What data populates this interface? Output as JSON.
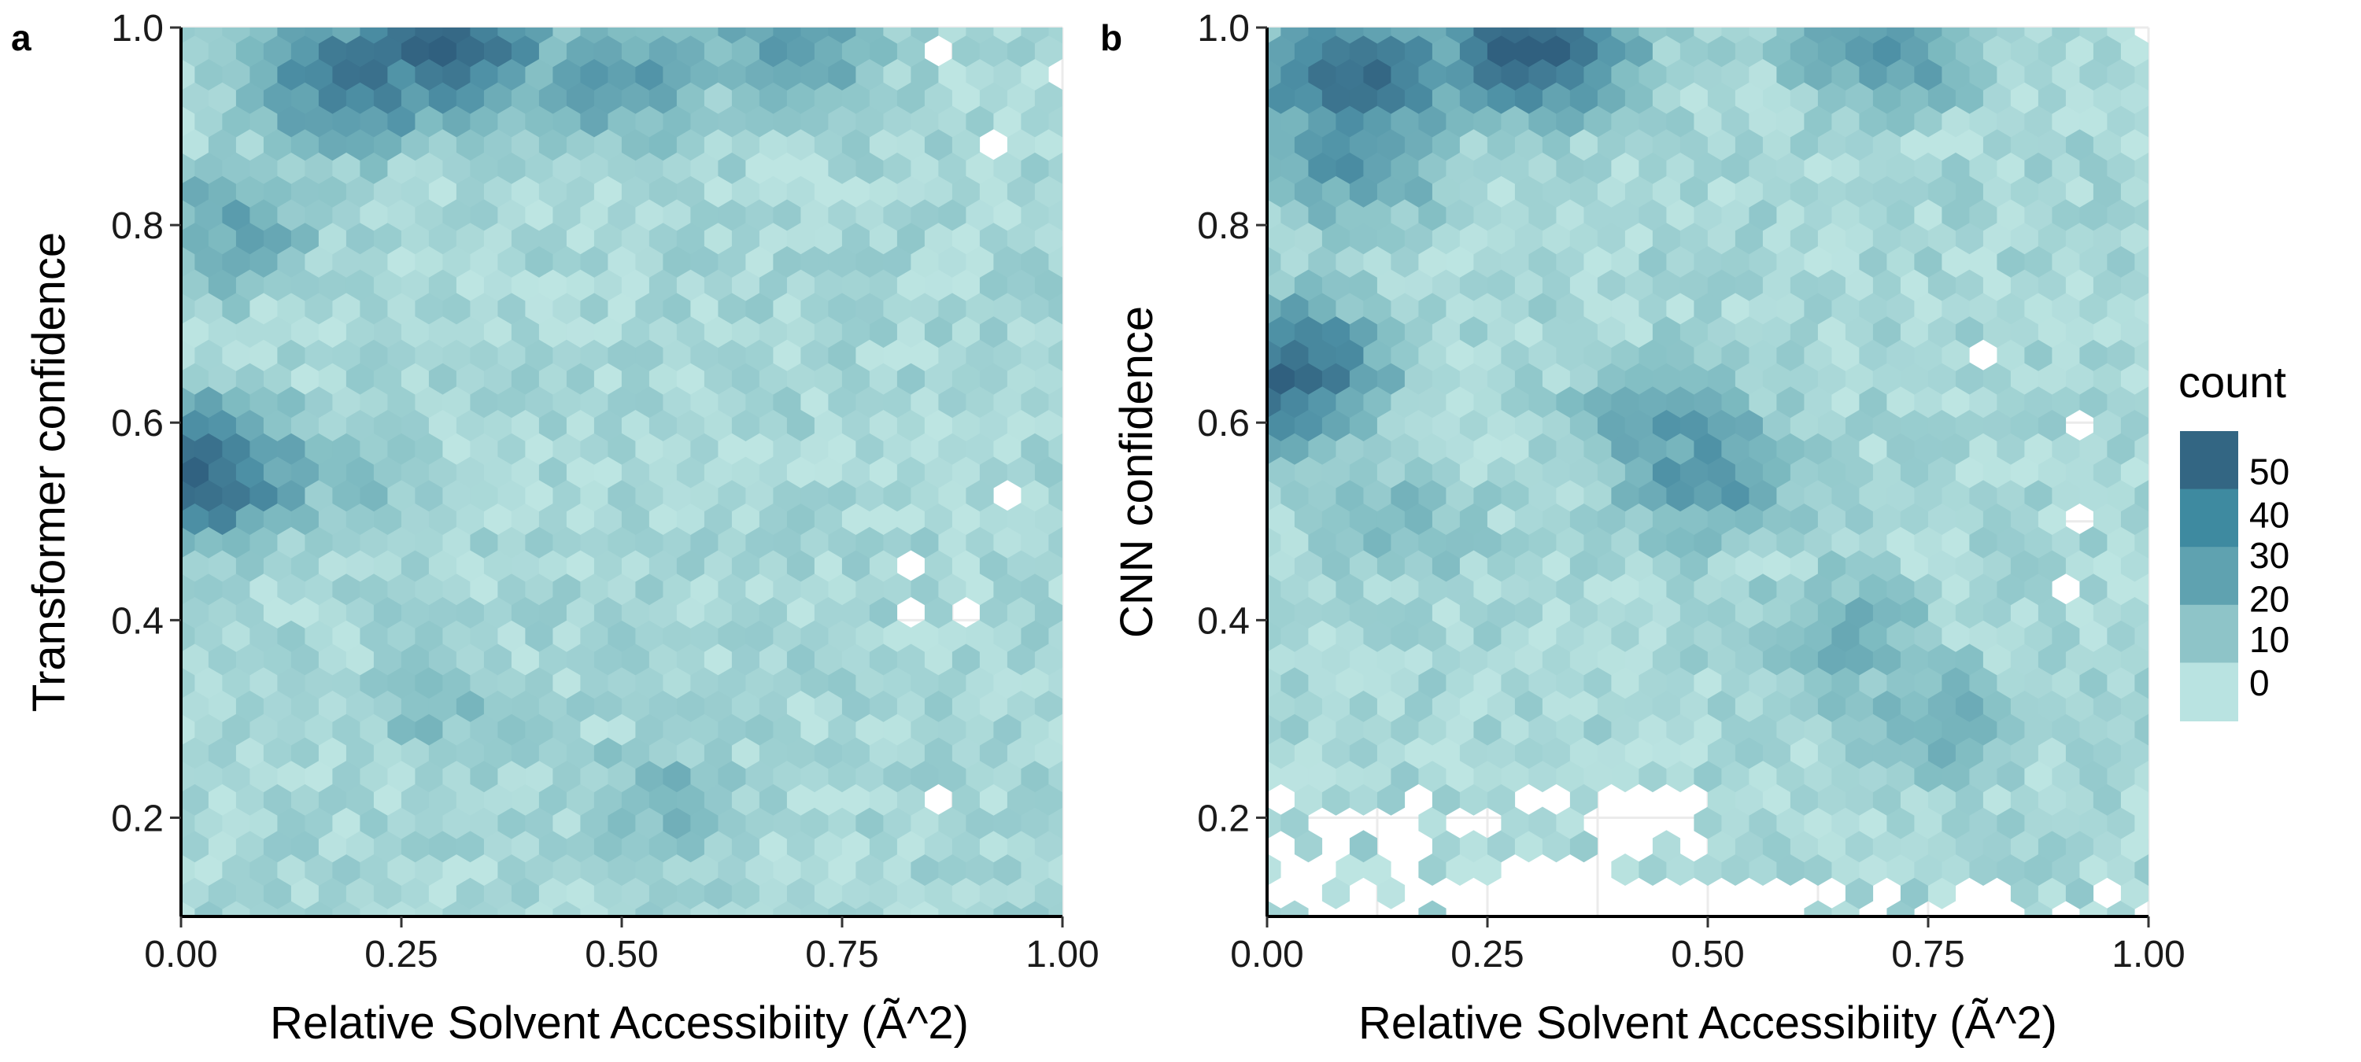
{
  "chart_data": [
    {
      "type": "hexbin",
      "panel": "a",
      "title": "",
      "xlabel": "Relative Solvent Accessibiity (Ã^2)",
      "ylabel": "Transformer confidence",
      "xlim": [
        0,
        1
      ],
      "ylim": [
        0.1,
        1.0
      ],
      "xticks": [
        0.0,
        0.25,
        0.5,
        0.75,
        1.0
      ],
      "xtick_labels": [
        "0.00",
        "0.25",
        "0.50",
        "0.75",
        "1.00"
      ],
      "yticks": [
        0.2,
        0.4,
        0.6,
        0.8,
        1.0
      ],
      "ytick_labels": [
        "0.2",
        "0.4",
        "0.6",
        "0.8",
        "1.0"
      ],
      "grid": true,
      "density_regions": [
        {
          "x": 0.3,
          "y": 0.985,
          "count": 55
        },
        {
          "x": 0.7,
          "y": 0.99,
          "count": 30
        },
        {
          "x": 0.2,
          "y": 0.95,
          "count": 45
        },
        {
          "x": 0.5,
          "y": 0.95,
          "count": 30
        },
        {
          "x": 0.02,
          "y": 0.55,
          "count": 50
        },
        {
          "x": 0.05,
          "y": 0.8,
          "count": 25
        },
        {
          "x": 0.2,
          "y": 0.55,
          "count": 15
        },
        {
          "x": 0.3,
          "y": 0.3,
          "count": 15
        },
        {
          "x": 0.55,
          "y": 0.22,
          "count": 18
        },
        {
          "x": 0.35,
          "y": 0.8,
          "count": 8
        },
        {
          "x": 0.85,
          "y": 0.6,
          "count": 3
        },
        {
          "x": 0.88,
          "y": 0.3,
          "count": 5
        }
      ]
    },
    {
      "type": "hexbin",
      "panel": "b",
      "title": "",
      "xlabel": "Relative Solvent Accessibiity (Ã^2)",
      "ylabel": "CNN confidence",
      "xlim": [
        0,
        1
      ],
      "ylim": [
        0.1,
        1.0
      ],
      "xticks": [
        0.0,
        0.25,
        0.5,
        0.75,
        1.0
      ],
      "xtick_labels": [
        "0.00",
        "0.25",
        "0.50",
        "0.75",
        "1.00"
      ],
      "yticks": [
        0.2,
        0.4,
        0.6,
        0.8,
        1.0
      ],
      "ytick_labels": [
        "0.2",
        "0.4",
        "0.6",
        "0.8",
        "1.0"
      ],
      "grid": true,
      "density_regions": [
        {
          "x": 0.3,
          "y": 0.985,
          "count": 55
        },
        {
          "x": 0.7,
          "y": 0.99,
          "count": 35
        },
        {
          "x": 0.1,
          "y": 0.95,
          "count": 50
        },
        {
          "x": 0.1,
          "y": 0.88,
          "count": 35
        },
        {
          "x": 0.02,
          "y": 0.65,
          "count": 50
        },
        {
          "x": 0.45,
          "y": 0.6,
          "count": 28
        },
        {
          "x": 0.5,
          "y": 0.55,
          "count": 32
        },
        {
          "x": 0.65,
          "y": 0.38,
          "count": 22
        },
        {
          "x": 0.75,
          "y": 0.3,
          "count": 22
        },
        {
          "x": 0.15,
          "y": 0.5,
          "count": 18
        },
        {
          "x": 0.2,
          "y": 0.3,
          "count": 4
        },
        {
          "x": 0.85,
          "y": 0.65,
          "count": 3
        }
      ]
    }
  ],
  "legend": {
    "title": "count",
    "labels": [
      "50",
      "40",
      "30",
      "20",
      "10",
      "0"
    ],
    "colors": [
      "#336683",
      "#3e8aa0",
      "#5fa2b0",
      "#8ec4c8",
      "#b9e3e1"
    ]
  },
  "colors": {
    "min": "#bde5e2",
    "mid": "#7ebbc1",
    "high": "#4d90a5",
    "max": "#30607f"
  }
}
